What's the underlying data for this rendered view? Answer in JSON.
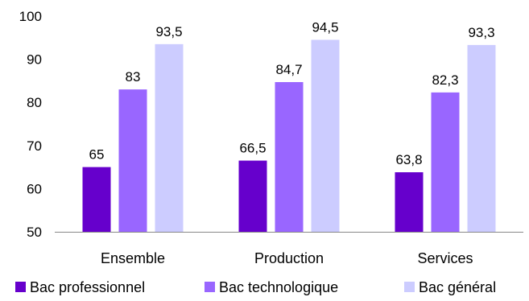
{
  "chart_data": {
    "type": "bar",
    "categories": [
      "Ensemble",
      "Production",
      "Services"
    ],
    "series": [
      {
        "name": "Bac professionnel",
        "color": "#6600cc",
        "values": [
          65,
          66.5,
          63.8
        ],
        "labels": [
          "65",
          "66,5",
          "63,8"
        ]
      },
      {
        "name": "Bac technologique",
        "color": "#9966ff",
        "values": [
          83,
          84.7,
          82.3
        ],
        "labels": [
          "83",
          "84,7",
          "82,3"
        ]
      },
      {
        "name": "Bac général",
        "color": "#ccccff",
        "values": [
          93.5,
          94.5,
          93.3
        ],
        "labels": [
          "93,5",
          "94,5",
          "93,3"
        ]
      }
    ],
    "ylim": [
      50,
      100
    ],
    "yticks": [
      50,
      60,
      70,
      80,
      90,
      100
    ],
    "ytick_labels": [
      "50",
      "60",
      "70",
      "80",
      "90",
      "100"
    ],
    "grid": false,
    "legend": "bottom",
    "title": "",
    "xlabel": "",
    "ylabel": ""
  }
}
